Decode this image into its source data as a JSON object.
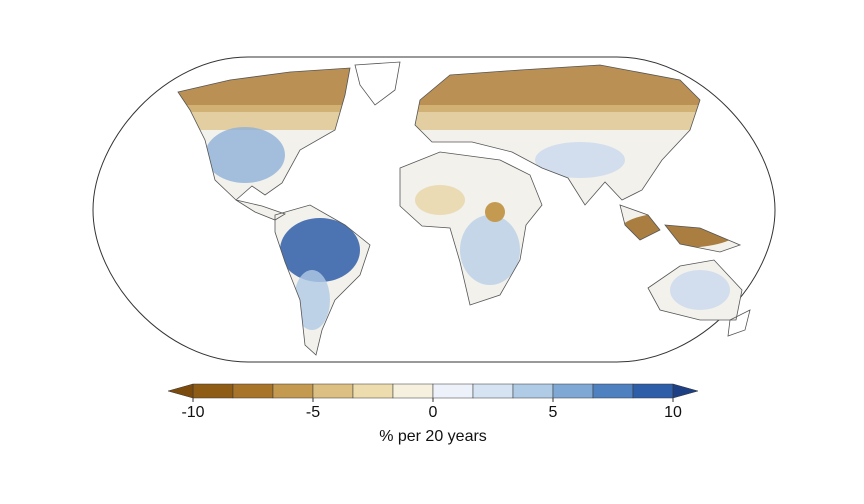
{
  "chart_data": {
    "type": "map",
    "colorbar": {
      "label": "% per 20 years",
      "vlim": [
        -10,
        10
      ],
      "ticks": [
        -10,
        -5,
        0,
        5,
        10
      ],
      "colors": [
        "#8f5c15",
        "#a8742a",
        "#c49a50",
        "#dcbf82",
        "#eddcae",
        "#f6f0df",
        "#edf2fa",
        "#d5e3f2",
        "#b0cbe6",
        "#7fa8d4",
        "#4f80c0",
        "#2f5ea9"
      ],
      "under_color": "#7a4b0c",
      "over_color": "#1d3f84"
    }
  }
}
